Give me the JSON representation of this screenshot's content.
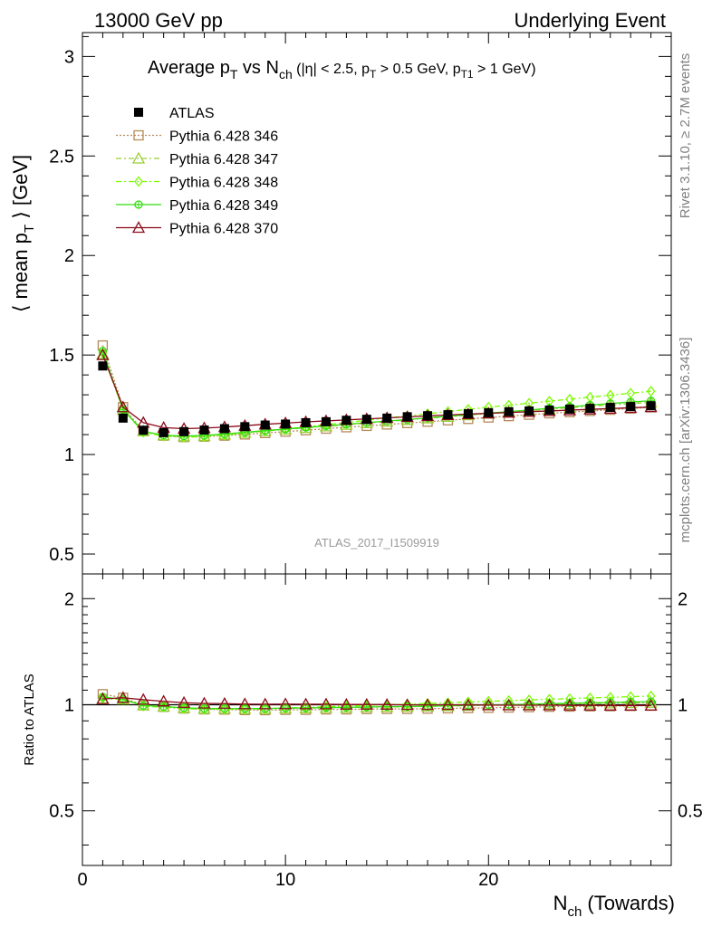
{
  "header": {
    "left": "13000 GeV pp",
    "right": "Underlying Event"
  },
  "side_labels": {
    "rivet": "Rivet 3.1.10, ≥ 2.7M events",
    "mcplots": "mcplots.cern.ch [arXiv:1306.3436]"
  },
  "watermark": "ATLAS_2017_I1509919",
  "colors": {
    "atlas": "#000000",
    "p346": "#b5895a",
    "p347": "#9acd32",
    "p348": "#7cfc00",
    "p349": "#33dd11",
    "p370": "#8b0a1a"
  },
  "chart_data": {
    "type": "line",
    "title": {
      "main": "Average p",
      "main_sub": "T",
      "vs": " vs N",
      "vs_sub": "ch",
      "cuts_a": " (|η| < 2.5, p",
      "cuts_a_sub": "T",
      "cuts_b": " > 0.5 GeV, p",
      "cuts_b_sub": "T1",
      "cuts_c": " > 1 GeV)"
    },
    "ylabel": {
      "pre": "⟨ mean p",
      "sub": "T",
      "post": " ⟩ [GeV]"
    },
    "xlabel": {
      "main": "N",
      "sub": "ch",
      "post": " (Towards)"
    },
    "ratio_ylabel": "Ratio to ATLAS",
    "xlim": [
      0,
      29
    ],
    "ylim": [
      0.4,
      3.12
    ],
    "ratio_ylim": [
      0.35,
      2.35
    ],
    "xticks": [
      0,
      10,
      20
    ],
    "yticks": [
      0.5,
      1,
      1.5,
      2,
      2.5,
      3
    ],
    "ratio_yticks": [
      0.5,
      1,
      2
    ],
    "legend_position": "top-left",
    "x": [
      1,
      2,
      3,
      4,
      5,
      6,
      7,
      8,
      9,
      10,
      11,
      12,
      13,
      14,
      15,
      16,
      17,
      18,
      19,
      20,
      21,
      22,
      23,
      24,
      25,
      26,
      27,
      28
    ],
    "series": [
      {
        "name": "ATLAS",
        "key": "atlas",
        "marker": "square-filled",
        "values": [
          1.445,
          1.183,
          1.122,
          1.11,
          1.115,
          1.123,
          1.13,
          1.14,
          1.148,
          1.153,
          1.16,
          1.165,
          1.172,
          1.177,
          1.183,
          1.19,
          1.195,
          1.2,
          1.205,
          1.21,
          1.215,
          1.219,
          1.223,
          1.228,
          1.232,
          1.237,
          1.241,
          1.245
        ]
      },
      {
        "name": "Pythia 6.428 346",
        "key": "p346",
        "marker": "square-open",
        "dash": "2,2",
        "values": [
          1.548,
          1.238,
          1.118,
          1.095,
          1.088,
          1.09,
          1.095,
          1.101,
          1.108,
          1.115,
          1.122,
          1.13,
          1.137,
          1.144,
          1.151,
          1.158,
          1.165,
          1.172,
          1.179,
          1.186,
          1.193,
          1.2,
          1.207,
          1.213,
          1.219,
          1.225,
          1.231,
          1.237
        ]
      },
      {
        "name": "Pythia 6.428 347",
        "key": "p347",
        "marker": "triangle-open",
        "dash": "6,3,2,3",
        "values": [
          1.505,
          1.225,
          1.118,
          1.097,
          1.092,
          1.094,
          1.101,
          1.11,
          1.118,
          1.126,
          1.134,
          1.142,
          1.15,
          1.158,
          1.166,
          1.174,
          1.182,
          1.19,
          1.198,
          1.206,
          1.213,
          1.221,
          1.228,
          1.235,
          1.242,
          1.249,
          1.256,
          1.262
        ]
      },
      {
        "name": "Pythia 6.428 348",
        "key": "p348",
        "marker": "diamond-open",
        "dash": "6,3,2,3",
        "values": [
          1.51,
          1.225,
          1.112,
          1.092,
          1.087,
          1.09,
          1.098,
          1.108,
          1.118,
          1.129,
          1.139,
          1.15,
          1.161,
          1.172,
          1.183,
          1.194,
          1.205,
          1.216,
          1.227,
          1.238,
          1.248,
          1.258,
          1.268,
          1.278,
          1.288,
          1.298,
          1.308,
          1.318
        ]
      },
      {
        "name": "Pythia 6.428 349",
        "key": "p349",
        "marker": "circle-cross",
        "dash": "",
        "values": [
          1.52,
          1.225,
          1.116,
          1.097,
          1.093,
          1.096,
          1.103,
          1.112,
          1.12,
          1.128,
          1.136,
          1.144,
          1.152,
          1.16,
          1.168,
          1.176,
          1.184,
          1.192,
          1.2,
          1.208,
          1.216,
          1.224,
          1.232,
          1.24,
          1.248,
          1.256,
          1.264,
          1.27
        ]
      },
      {
        "name": "Pythia 6.428 370",
        "key": "p370",
        "marker": "triangle-open",
        "dash": "",
        "values": [
          1.5,
          1.238,
          1.16,
          1.135,
          1.13,
          1.133,
          1.138,
          1.145,
          1.152,
          1.158,
          1.164,
          1.169,
          1.174,
          1.179,
          1.184,
          1.189,
          1.194,
          1.199,
          1.203,
          1.207,
          1.211,
          1.215,
          1.219,
          1.223,
          1.227,
          1.231,
          1.235,
          1.239
        ]
      }
    ]
  }
}
